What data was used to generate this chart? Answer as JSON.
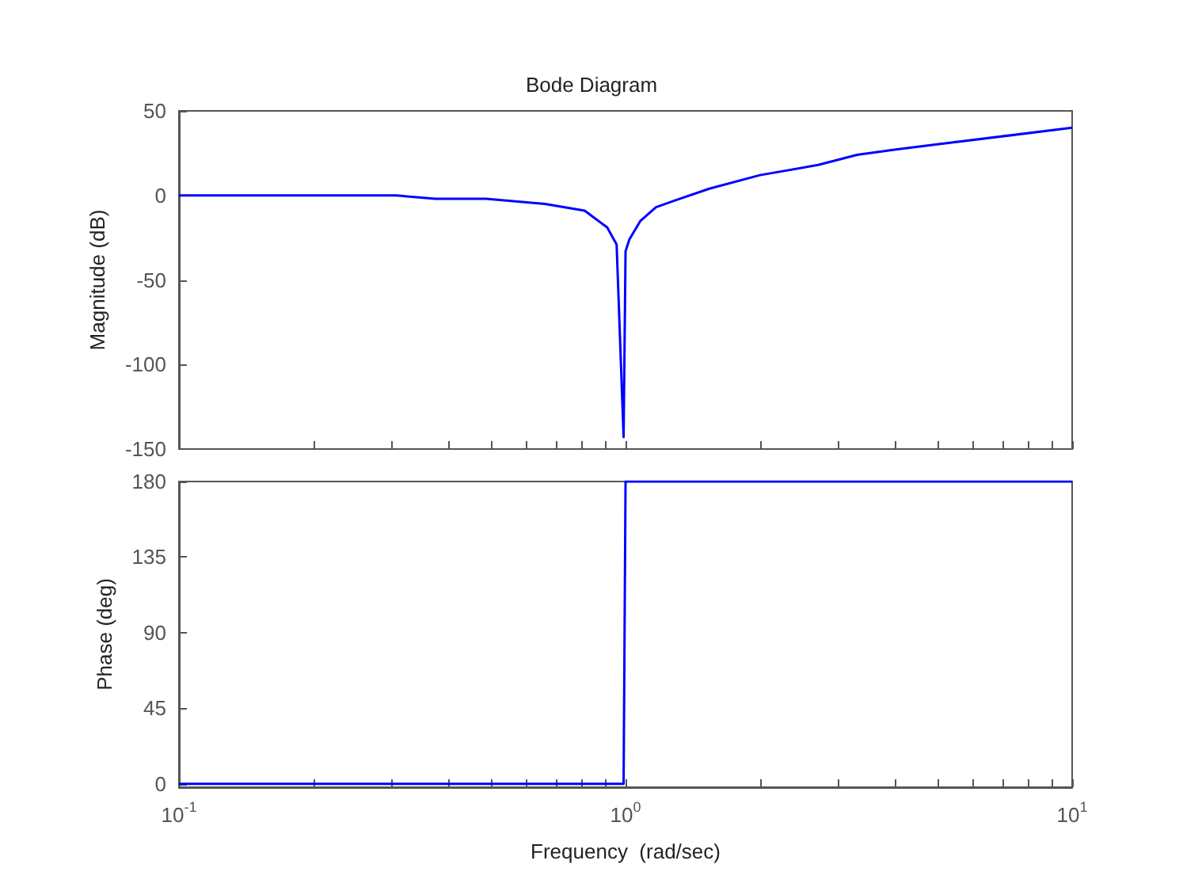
{
  "chart_data": [
    {
      "type": "line",
      "title": "Bode Diagram",
      "ylabel": "Magnitude (dB)",
      "log": "x",
      "marker": "none",
      "tick_labels": "y",
      "xlim": [
        0.1,
        10
      ],
      "ylim": [
        -150,
        50
      ],
      "yticks": [
        -150,
        -100,
        -50,
        0,
        50
      ],
      "xticks": [
        {
          "value": 0.1,
          "label": null
        },
        {
          "value": 0.2,
          "label": null
        },
        {
          "value": 0.3,
          "label": null
        },
        {
          "value": 0.4,
          "label": null
        },
        {
          "value": 0.5,
          "label": null
        },
        {
          "value": 0.6,
          "label": null
        },
        {
          "value": 0.7,
          "label": null
        },
        {
          "value": 0.8,
          "label": null
        },
        {
          "value": 0.9,
          "label": null
        },
        {
          "value": 1,
          "label": null
        },
        {
          "value": 2,
          "label": null
        },
        {
          "value": 3,
          "label": null
        },
        {
          "value": 4,
          "label": null
        },
        {
          "value": 5,
          "label": null
        },
        {
          "value": 6,
          "label": null
        },
        {
          "value": 7,
          "label": null
        },
        {
          "value": 8,
          "label": null
        },
        {
          "value": 9,
          "label": null
        },
        {
          "value": 10,
          "label": null
        }
      ],
      "series": [
        {
          "color": "#0000ff",
          "x": [
            0.1,
            0.306,
            0.375,
            0.487,
            0.66,
            0.81,
            0.91,
            0.955,
            0.99,
            1.0,
            1.02,
            1.08,
            1.17,
            1.29,
            1.54,
            2.0,
            2.7,
            3.3,
            4.0,
            4.9,
            10
          ],
          "values": [
            0,
            0,
            -2,
            -2,
            -5,
            -9,
            -19,
            -29,
            -143,
            -33,
            -26,
            -15,
            -7,
            -3,
            4,
            12,
            18,
            24,
            27,
            30,
            40
          ]
        }
      ]
    },
    {
      "type": "line",
      "xlabel": "Frequency  (rad/sec)",
      "ylabel": "Phase (deg)",
      "log": "x",
      "marker": "none",
      "xlim": [
        0.1,
        10
      ],
      "ylim": [
        -2,
        180
      ],
      "yticks": [
        0,
        45,
        90,
        135,
        180
      ],
      "xticks": [
        {
          "value": 0.1,
          "label": "10$^{-1}$"
        },
        {
          "value": 0.2,
          "label": null
        },
        {
          "value": 0.3,
          "label": null
        },
        {
          "value": 0.4,
          "label": null
        },
        {
          "value": 0.5,
          "label": null
        },
        {
          "value": 0.6,
          "label": null
        },
        {
          "value": 0.7,
          "label": null
        },
        {
          "value": 0.8,
          "label": null
        },
        {
          "value": 0.9,
          "label": null
        },
        {
          "value": 1,
          "label": "10$^{0}$"
        },
        {
          "value": 2,
          "label": null
        },
        {
          "value": 3,
          "label": null
        },
        {
          "value": 4,
          "label": null
        },
        {
          "value": 5,
          "label": null
        },
        {
          "value": 6,
          "label": null
        },
        {
          "value": 7,
          "label": null
        },
        {
          "value": 8,
          "label": null
        },
        {
          "value": 9,
          "label": null
        },
        {
          "value": 10,
          "label": "10$^{1}$"
        }
      ],
      "series": [
        {
          "color": "#0000ff",
          "x": [
            0.1,
            0.99,
            1.0,
            10
          ],
          "values": [
            0,
            0,
            180,
            180
          ]
        }
      ]
    }
  ]
}
